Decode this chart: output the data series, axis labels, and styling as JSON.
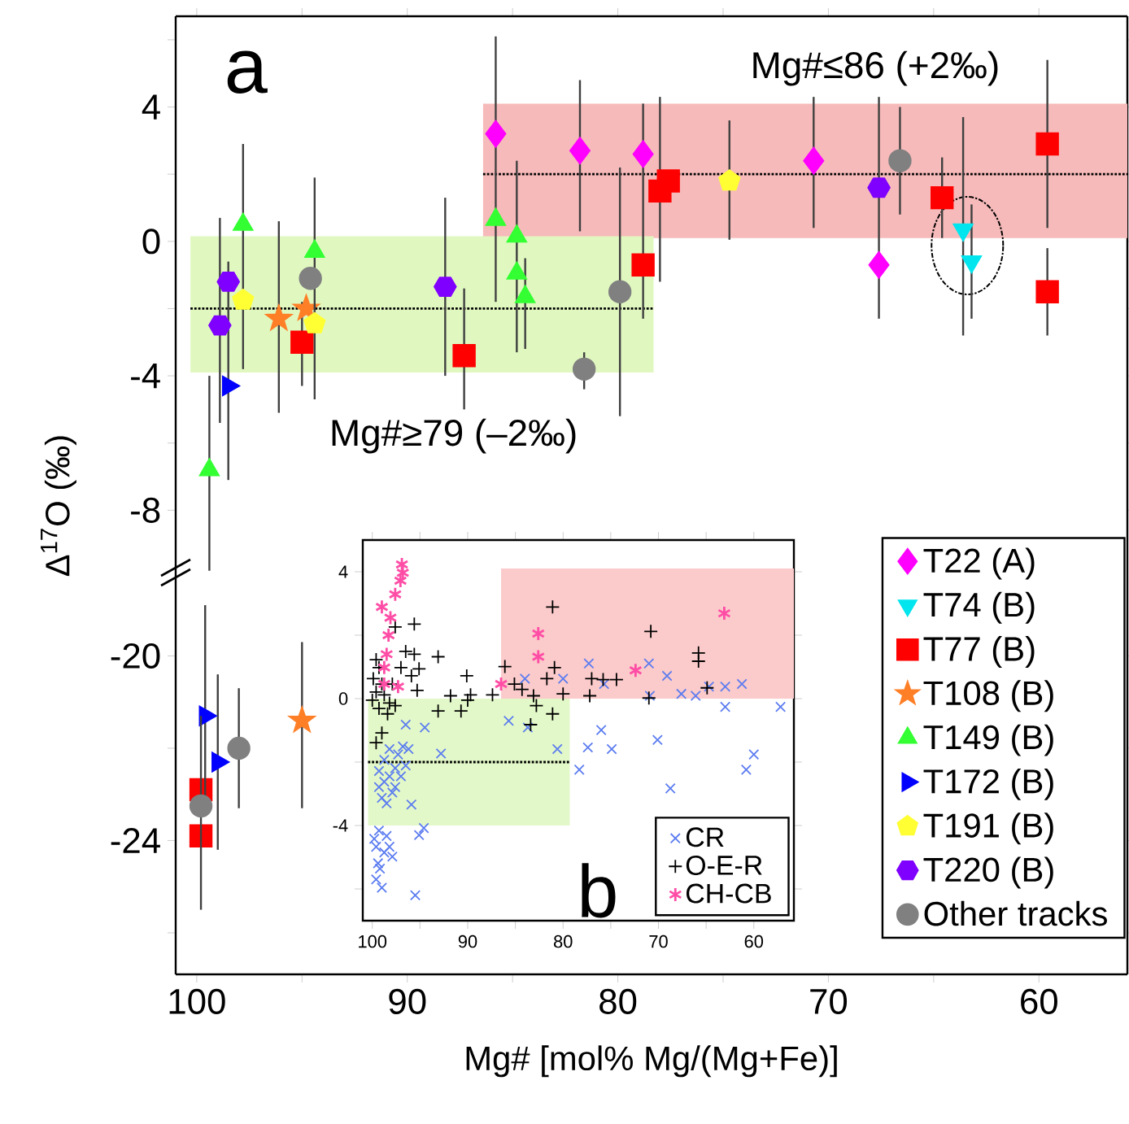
{
  "chart_data": [
    {
      "type": "scatter",
      "ylabel": "Δ$^{17}$O (‰)",
      "xlim": [
        101,
        55.8
      ],
      "ylim": [
        -10,
        6.7
      ],
      "xticks": [
        {
          "value": 100,
          "label": null
        },
        {
          "value": 95,
          "label": null
        },
        {
          "value": 90,
          "label": null
        },
        {
          "value": 85,
          "label": null
        },
        {
          "value": 80,
          "label": null
        },
        {
          "value": 75,
          "label": null
        },
        {
          "value": 70,
          "label": null
        },
        {
          "value": 65,
          "label": null
        },
        {
          "value": 60,
          "label": null
        }
      ],
      "yticks": [
        {
          "value": 6,
          "label": null
        },
        4,
        {
          "value": 2,
          "label": null
        },
        0,
        {
          "value": -2,
          "label": null
        },
        -4,
        {
          "value": -6,
          "label": null
        },
        -8
      ],
      "tick_labels": "y",
      "legend": "bottom right",
      "annotations": [
        "a",
        "Mg#≤86 (+2‰)",
        "Mg#≥79 (–2‰)"
      ],
      "series": [
        {
          "type": "line",
          "x": [
            86.4,
            55.8
          ],
          "values": [
            null,
            null
          ],
          "lower": [
            0.1,
            0.1
          ],
          "upper": [
            4.1,
            4.1
          ],
          "color": "#f7baba"
        },
        {
          "type": "line",
          "x": [
            86.4,
            55.8
          ],
          "values": [
            2,
            2
          ],
          "color": "#000000",
          "line_style": "dotted"
        },
        {
          "type": "line",
          "x": [
            100.3,
            78.3
          ],
          "values": [
            null,
            null
          ],
          "lower": [
            -3.9,
            -3.9
          ],
          "upper": [
            0.15,
            0.15
          ],
          "color": "#e0f8c0"
        },
        {
          "type": "line",
          "x": [
            100.3,
            78.3
          ],
          "values": [
            -2,
            -2
          ],
          "color": "#000000",
          "line_style": "dotted"
        },
        {
          "name": "T22 (A)",
          "color": "#ff00ff",
          "marker": "diamond",
          "x": [
            85.8,
            81.8,
            78.8,
            70.7,
            67.6
          ],
          "values": [
            3.2,
            2.7,
            2.6,
            2.4,
            -0.7
          ],
          "errors": [
            [
              -1.8,
              6.1
            ],
            [
              0.3,
              4.8
            ],
            [
              -2.3,
              4.1
            ],
            [
              0.4,
              4.3
            ],
            [
              -2.3,
              4.3
            ]
          ]
        },
        {
          "name": "T74 (B)",
          "color": "#00e5ee",
          "marker": "triangle-down",
          "x": [
            63.6,
            63.2
          ],
          "values": [
            0.35,
            -0.6
          ],
          "errors": [
            [
              -2.8,
              3.7
            ],
            [
              -2.3,
              1.1
            ]
          ]
        },
        {
          "name": "T77 (B)",
          "color": "#ff0000",
          "marker": "square",
          "x": [
            95.0,
            87.3,
            78.8,
            78.0,
            77.6,
            64.6,
            59.6,
            59.6
          ],
          "values": [
            -3.0,
            -3.4,
            -0.7,
            1.5,
            1.8,
            1.3,
            2.9,
            -1.5
          ],
          "errors": [
            [
              -4.3,
              -1.8
            ],
            [
              -5.0,
              -1.4
            ],
            null,
            [
              -1.2,
              4.3
            ],
            null,
            [
              0.1,
              2.5
            ],
            [
              0.4,
              5.4
            ],
            [
              -2.8,
              -0.2
            ]
          ]
        },
        {
          "name": "T108 (B)",
          "color": "#ff7f27",
          "marker": "star",
          "x": [
            96.1,
            94.8
          ],
          "values": [
            -2.3,
            -2.0
          ],
          "errors": [
            [
              -5.1,
              0.6
            ],
            null
          ]
        },
        {
          "name": "T149 (B)",
          "color": "#33ff33",
          "marker": "triangle",
          "x": [
            99.4,
            97.8,
            94.4,
            85.8,
            84.8,
            84.8,
            84.4
          ],
          "values": [
            -6.8,
            0.5,
            -0.3,
            0.65,
            0.15,
            -0.95,
            -1.65
          ],
          "errors": [
            [
              -9.8,
              -4.0
            ],
            [
              -3.8,
              2.9
            ],
            [
              -4.7,
              1.9
            ],
            null,
            [
              -3.3,
              2.4
            ],
            null,
            [
              -3.2,
              -0.5
            ]
          ]
        },
        {
          "name": "T172 (B)",
          "color": "#0000ff",
          "marker": "triangle-right",
          "x": [
            98.5
          ],
          "values": [
            -4.3
          ],
          "errors": [
            [
              -7.1,
              -0.6
            ]
          ]
        },
        {
          "name": "T191 (B)",
          "color": "#ffff33",
          "x": [
            97.8,
            94.4,
            74.7
          ],
          "values": [
            -1.75,
            -2.45,
            1.8
          ],
          "errors": [
            null,
            null,
            [
              0.05,
              3.6
            ]
          ]
        },
        {
          "name": "T220 (B)",
          "color": "#8000ff",
          "x": [
            98.9,
            98.5,
            88.2,
            67.6
          ],
          "values": [
            -2.5,
            -1.2,
            -1.35,
            1.6
          ],
          "errors": [
            [
              -5.4,
              0.7
            ],
            null,
            [
              -4.0,
              1.3
            ],
            null
          ]
        },
        {
          "name": "Other tracks",
          "color": "#808080",
          "marker": "circle",
          "x": [
            94.6,
            81.6,
            79.9,
            66.6
          ],
          "values": [
            -1.1,
            -3.8,
            -1.5,
            2.4
          ],
          "errors": [
            null,
            [
              -4.4,
              -3.3
            ],
            [
              -5.2,
              2.2
            ],
            [
              0.8,
              4.0
            ]
          ]
        }
      ]
    },
    {
      "type": "scatter",
      "xlabel": "Mg# [mol% Mg/(Mg+Fe)]",
      "xlim": [
        101,
        55.8
      ],
      "ylim": [
        -26.9,
        -18.3
      ],
      "xticks": [
        100,
        {
          "value": 95,
          "label": null
        },
        90,
        {
          "value": 85,
          "label": null
        },
        80,
        {
          "value": 75,
          "label": null
        },
        70,
        {
          "value": 65,
          "label": null
        },
        60
      ],
      "yticks": [
        -20,
        {
          "value": -22,
          "label": null
        },
        -24,
        {
          "value": -26,
          "label": null
        }
      ],
      "series": [
        {
          "color": "#ff0000",
          "marker": "square",
          "x": [
            99.8,
            99.8
          ],
          "values": [
            -22.9,
            -23.9
          ]
        },
        {
          "color": "#ff7f27",
          "marker": "star",
          "x": [
            95.0
          ],
          "values": [
            -21.4
          ],
          "errors": [
            [
              -23.3,
              -19.7
            ]
          ]
        },
        {
          "color": "#0000ff",
          "marker": "triangle-right",
          "x": [
            99.6,
            99.0
          ],
          "values": [
            -21.3,
            -22.3
          ],
          "errors": [
            [
              -23.2,
              -18.9
            ],
            [
              -24.2,
              -20.4
            ]
          ]
        },
        {
          "color": "#808080",
          "marker": "circle",
          "x": [
            98.0,
            99.8
          ],
          "values": [
            -22.0,
            -23.25
          ],
          "errors": [
            [
              -23.3,
              -20.7
            ],
            [
              -25.5,
              -21.3
            ]
          ]
        }
      ]
    },
    {
      "type": "scatter",
      "xlim": [
        101,
        55.8
      ],
      "ylim": [
        -7.0,
        5.0
      ],
      "xticks": [
        100,
        {
          "value": 95,
          "label": null
        },
        90,
        {
          "value": 85,
          "label": null
        },
        80,
        {
          "value": 75,
          "label": null
        },
        70,
        {
          "value": 65,
          "label": null
        },
        60
      ],
      "yticks": [
        4,
        {
          "value": 2,
          "label": null
        },
        0,
        {
          "value": -2,
          "label": null
        },
        -4,
        {
          "value": -6,
          "label": null
        }
      ],
      "legend": "bottom right",
      "annotations": [
        "b"
      ],
      "series": [
        {
          "type": "line",
          "x": [
            86.5,
            55.8
          ],
          "values": [
            null,
            null
          ],
          "lower": [
            0,
            0
          ],
          "upper": [
            4.1,
            4.1
          ],
          "color": "#fbcaca"
        },
        {
          "type": "line",
          "x": [
            100.45,
            79.3
          ],
          "values": [
            null,
            null
          ],
          "lower": [
            -4,
            -4
          ],
          "upper": [
            0,
            0
          ],
          "color": "#e3f8c8"
        },
        {
          "type": "line",
          "x": [
            100.45,
            79.3
          ],
          "values": [
            -2,
            -2
          ],
          "color": "#000000",
          "line_style": "dotted"
        },
        {
          "name": "CR",
          "color": "#5b7cf0",
          "marker": "cross",
          "x": [
            99.3,
            99.6,
            99.4,
            99.6,
            99.0,
            98.75,
            98.2,
            98.5,
            99.2,
            97.9,
            99.8,
            95.5,
            95.9,
            95.1,
            94.6,
            99.3,
            98.75,
            98.2,
            97.6,
            99.0,
            98.5,
            97.9,
            97.3,
            96.8,
            98.2,
            98.75,
            99.3,
            97.6,
            97.0,
            96.5,
            96.2,
            96.5,
            94.5,
            92.8,
            85.7,
            83.7,
            80.6,
            84.0,
            80.0,
            78.3,
            77.4,
            76.0,
            74.9,
            77.3,
            75.7,
            71.0,
            70.1,
            70.9,
            68.75,
            69.1,
            67.6,
            66.1,
            64.7,
            63.0,
            63.0,
            61.25,
            60.8,
            60.0,
            57.2
          ],
          "values": [
            -4.16,
            -4.67,
            -5.19,
            -5.7,
            -5.96,
            -4.85,
            -4.67,
            -4.33,
            -5.36,
            -4.98,
            -4.42,
            -6.2,
            -3.34,
            -4.3,
            -4.08,
            -2.28,
            -2.62,
            -2.45,
            -2.19,
            -3.13,
            -3.3,
            -2.96,
            -1.76,
            -1.51,
            -1.59,
            -1.93,
            -2.79,
            -2.79,
            -2.45,
            -2.11,
            -1.59,
            -0.82,
            -0.91,
            -1.73,
            -0.7,
            -0.91,
            -1.59,
            0.63,
            0.63,
            -2.24,
            -1.54,
            -0.99,
            -1.59,
            1.11,
            0.46,
            1.11,
            -1.3,
            0.09,
            -2.83,
            0.72,
            0.15,
            0.09,
            0.38,
            0.38,
            -0.26,
            0.46,
            -2.24,
            -1.76,
            -0.26
          ]
        },
        {
          "name": "O-E-R",
          "color": "#000000",
          "marker": "plus",
          "x": [
            99.6,
            99.3,
            99.9,
            99.0,
            99.6,
            100.0,
            98.75,
            98.2,
            99.3,
            98.4,
            97.6,
            99.6,
            99.0,
            97.9,
            97.6,
            95.6,
            95.9,
            95.6,
            95.1,
            97.0,
            96.5,
            95.3,
            93.1,
            93.1,
            91.8,
            90.7,
            90.1,
            89.7,
            90.0,
            87.4,
            86.1,
            85.1,
            84.3,
            83.1,
            83.4,
            82.8,
            81.1,
            81.7,
            80.9,
            81.1,
            80.0,
            77.2,
            77.0,
            75.8,
            74.4,
            70.8,
            71.0,
            65.8,
            65.8,
            64.9
          ],
          "values": [
            1.23,
            0.98,
            0.63,
            0.46,
            0.21,
            -0.05,
            0.12,
            -0.14,
            -0.31,
            -0.48,
            -0.22,
            -1.39,
            -1.08,
            0.46,
            2.26,
            2.35,
            0.72,
            1.4,
            0.94,
            0.98,
            1.49,
            0.26,
            -0.39,
            1.32,
            0.09,
            -0.39,
            0.72,
            0.12,
            -0.05,
            0.12,
            1.01,
            0.46,
            0.29,
            0.09,
            -0.82,
            -0.22,
            2.89,
            0.63,
            0.98,
            -0.48,
            0.15,
            0.09,
            0.63,
            0.6,
            0.6,
            2.12,
            0.02,
            1.44,
            1.18,
            0.34
          ]
        },
        {
          "name": "CH-CB",
          "color": "#ff4da6",
          "x": [
            96.9,
            96.8,
            97.05,
            97.6,
            99.0,
            98.1,
            98.3,
            98.5,
            98.75,
            98.75,
            97.3,
            86.5,
            82.6,
            82.6,
            72.4,
            63.1
          ],
          "values": [
            4.23,
            3.97,
            3.72,
            3.29,
            2.89,
            2.55,
            2.0,
            1.4,
            0.98,
            0.46,
            0.38,
            0.46,
            2.05,
            1.32,
            0.89,
            2.69
          ]
        }
      ]
    }
  ]
}
